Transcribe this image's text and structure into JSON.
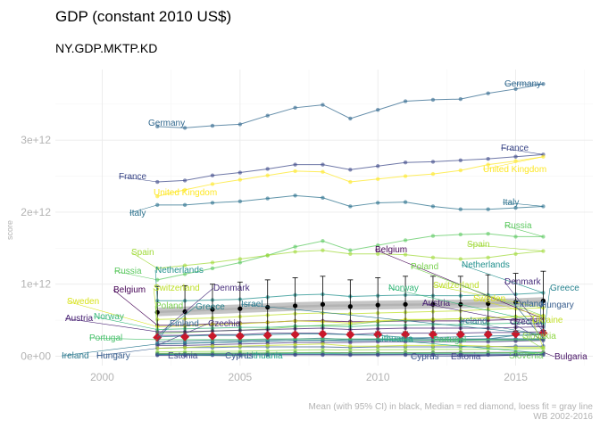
{
  "chart_data": {
    "type": "line",
    "title": "GDP (constant 2010 US$)",
    "subtitle": "NY.GDP.MKTP.KD",
    "ylabel": "score",
    "xlabel": "",
    "caption_line1": "Mean (with 95% CI) in black, Median = red diamond, loess fit = gray line",
    "caption_line2": "WB 2002-2016",
    "xlim": [
      1998.3,
      2017.8
    ],
    "ylim": [
      -130000000000.0,
      3980000000000.0
    ],
    "x_ticks": [
      2000,
      2005,
      2010,
      2015
    ],
    "x_tick_labels": [
      "2000",
      "2005",
      "2010",
      "2015"
    ],
    "y_ticks": [
      0,
      1000000000000.0,
      2000000000000.0,
      3000000000000.0
    ],
    "y_tick_labels": [
      "0e+00",
      "1e+12",
      "2e+12",
      "3e+12"
    ],
    "grid": true,
    "legend": "none",
    "x": [
      2002,
      2003,
      2004,
      2005,
      2006,
      2007,
      2008,
      2009,
      2010,
      2011,
      2012,
      2013,
      2014,
      2015,
      2016
    ],
    "series": [
      {
        "name": "Germany",
        "color": "#31688e",
        "label_start": "Germany",
        "label_end": "Germany",
        "values": [
          3190000000000.0,
          3170000000000.0,
          3200000000000.0,
          3220000000000.0,
          3340000000000.0,
          3450000000000.0,
          3490000000000.0,
          3300000000000.0,
          3420000000000.0,
          3540000000000.0,
          3560000000000.0,
          3570000000000.0,
          3650000000000.0,
          3710000000000.0,
          3780000000000.0
        ]
      },
      {
        "name": "France",
        "color": "#3e4a89",
        "label_start": "France",
        "label_end": "France",
        "values": [
          2420000000000.0,
          2440000000000.0,
          2510000000000.0,
          2550000000000.0,
          2600000000000.0,
          2660000000000.0,
          2660000000000.0,
          2590000000000.0,
          2640000000000.0,
          2690000000000.0,
          2700000000000.0,
          2720000000000.0,
          2740000000000.0,
          2770000000000.0,
          2800000000000.0
        ]
      },
      {
        "name": "United Kingdom",
        "color": "#fde725",
        "label_start": "United Kingdom",
        "label_end": "United Kingdom",
        "values": [
          2220000000000.0,
          2310000000000.0,
          2390000000000.0,
          2450000000000.0,
          2510000000000.0,
          2570000000000.0,
          2560000000000.0,
          2420000000000.0,
          2460000000000.0,
          2500000000000.0,
          2530000000000.0,
          2580000000000.0,
          2660000000000.0,
          2710000000000.0,
          2770000000000.0
        ]
      },
      {
        "name": "Italy",
        "color": "#2c728e",
        "label_start": "Italy",
        "label_end": "Italy",
        "values": [
          2100000000000.0,
          2100000000000.0,
          2130000000000.0,
          2150000000000.0,
          2190000000000.0,
          2230000000000.0,
          2200000000000.0,
          2080000000000.0,
          2130000000000.0,
          2140000000000.0,
          2080000000000.0,
          2040000000000.0,
          2040000000000.0,
          2060000000000.0,
          2080000000000.0
        ]
      },
      {
        "name": "Russia",
        "color": "#5ec962",
        "label_start": "Russia",
        "label_end": "Russia",
        "values": [
          1060000000000.0,
          1140000000000.0,
          1220000000000.0,
          1300000000000.0,
          1400000000000.0,
          1520000000000.0,
          1600000000000.0,
          1470000000000.0,
          1540000000000.0,
          1610000000000.0,
          1670000000000.0,
          1690000000000.0,
          1700000000000.0,
          1660000000000.0,
          1660000000000.0
        ]
      },
      {
        "name": "Spain",
        "color": "#a0da39",
        "label_start": "Spain",
        "label_end": "Spain",
        "values": [
          1220000000000.0,
          1260000000000.0,
          1300000000000.0,
          1350000000000.0,
          1400000000000.0,
          1450000000000.0,
          1470000000000.0,
          1420000000000.0,
          1420000000000.0,
          1410000000000.0,
          1370000000000.0,
          1350000000000.0,
          1370000000000.0,
          1420000000000.0,
          1460000000000.0
        ]
      },
      {
        "name": "Netherlands",
        "color": "#21908d",
        "label_start": "Netherlands",
        "label_end": "Netherlands",
        "values": [
          770000000000.0,
          770000000000.0,
          780000000000.0,
          790000000000.0,
          820000000000.0,
          850000000000.0,
          860000000000.0,
          830000000000.0,
          840000000000.0,
          850000000000.0,
          840000000000.0,
          840000000000.0,
          850000000000.0,
          860000000000.0,
          880000000000.0
        ]
      },
      {
        "name": "Switzerland",
        "color": "#bddf26",
        "label_start": "Switzerland",
        "label_end": "Switzerland",
        "values": [
          510000000000.0,
          520000000000.0,
          530000000000.0,
          550000000000.0,
          570000000000.0,
          590000000000.0,
          600000000000.0,
          590000000000.0,
          600000000000.0,
          610000000000.0,
          620000000000.0,
          630000000000.0,
          650000000000.0,
          660000000000.0,
          670000000000.0
        ]
      },
      {
        "name": "Belgium",
        "color": "#440154",
        "label_start": "Belgium",
        "label_end": "Belgium",
        "values": [
          430000000000.0,
          430000000000.0,
          450000000000.0,
          460000000000.0,
          470000000000.0,
          490000000000.0,
          490000000000.0,
          480000000000.0,
          480000000000.0,
          490000000000.0,
          490000000000.0,
          490000000000.0,
          500000000000.0,
          510000000000.0,
          520000000000.0
        ]
      },
      {
        "name": "Poland",
        "color": "#7ad151",
        "label_start": "Poland",
        "label_end": "Poland",
        "values": [
          320000000000.0,
          330000000000.0,
          350000000000.0,
          360000000000.0,
          380000000000.0,
          410000000000.0,
          430000000000.0,
          440000000000.0,
          480000000000.0,
          500000000000.0,
          510000000000.0,
          520000000000.0,
          530000000000.0,
          550000000000.0,
          560000000000.0
        ]
      },
      {
        "name": "Sweden",
        "color": "#d8e219",
        "label_start": "Sweden",
        "label_end": "Sweden",
        "values": [
          410000000000.0,
          420000000000.0,
          440000000000.0,
          450000000000.0,
          470000000000.0,
          490000000000.0,
          480000000000.0,
          460000000000.0,
          490000000000.0,
          510000000000.0,
          510000000000.0,
          520000000000.0,
          530000000000.0,
          550000000000.0,
          560000000000.0
        ]
      },
      {
        "name": "Austria",
        "color": "#482173",
        "label_start": "Austria",
        "label_end": "Austria",
        "values": [
          340000000000.0,
          340000000000.0,
          350000000000.0,
          360000000000.0,
          370000000000.0,
          380000000000.0,
          390000000000.0,
          370000000000.0,
          380000000000.0,
          390000000000.0,
          390000000000.0,
          390000000000.0,
          390000000000.0,
          400000000000.0,
          410000000000.0
        ]
      },
      {
        "name": "Norway",
        "color": "#35b779",
        "label_start": "Norway",
        "label_end": "Norway",
        "values": [
          370000000000.0,
          380000000000.0,
          390000000000.0,
          400000000000.0,
          400000000000.0,
          420000000000.0,
          420000000000.0,
          410000000000.0,
          430000000000.0,
          430000000000.0,
          440000000000.0,
          440000000000.0,
          450000000000.0,
          460000000000.0,
          460000000000.0
        ]
      },
      {
        "name": "Denmark",
        "color": "#472d7b",
        "label_start": "Denmark",
        "label_end": "Denmark",
        "values": [
          290000000000.0,
          290000000000.0,
          300000000000.0,
          300000000000.0,
          320000000000.0,
          320000000000.0,
          320000000000.0,
          300000000000.0,
          320000000000.0,
          320000000000.0,
          320000000000.0,
          320000000000.0,
          330000000000.0,
          330000000000.0,
          340000000000.0
        ]
      },
      {
        "name": "Greece",
        "color": "#26828e",
        "label_start": "Greece",
        "label_end": "Greece",
        "values": [
          270000000000.0,
          280000000000.0,
          290000000000.0,
          290000000000.0,
          300000000000.0,
          310000000000.0,
          310000000000.0,
          300000000000.0,
          290000000000.0,
          260000000000.0,
          240000000000.0,
          230000000000.0,
          240000000000.0,
          240000000000.0,
          240000000000.0
        ]
      },
      {
        "name": "Israel",
        "color": "#29798e",
        "label_start": "",
        "label_end": "Israel",
        "values": [
          170000000000.0,
          180000000000.0,
          190000000000.0,
          200000000000.0,
          210000000000.0,
          220000000000.0,
          220000000000.0,
          230000000000.0,
          230000000000.0,
          250000000000.0,
          260000000000.0,
          270000000000.0,
          280000000000.0,
          290000000000.0,
          300000000000.0
        ]
      },
      {
        "name": "Finland",
        "color": "#31688e",
        "label_start": "Finland",
        "label_end": "Finland",
        "values": [
          200000000000.0,
          210000000000.0,
          220000000000.0,
          220000000000.0,
          230000000000.0,
          240000000000.0,
          250000000000.0,
          230000000000.0,
          240000000000.0,
          240000000000.0,
          240000000000.0,
          240000000000.0,
          240000000000.0,
          240000000000.0,
          240000000000.0
        ]
      },
      {
        "name": "Ireland",
        "color": "#2a788e",
        "label_start": "Ireland",
        "label_end": "Ireland",
        "values": [
          170000000000.0,
          180000000000.0,
          190000000000.0,
          200000000000.0,
          210000000000.0,
          220000000000.0,
          220000000000.0,
          210000000000.0,
          220000000000.0,
          220000000000.0,
          220000000000.0,
          220000000000.0,
          240000000000.0,
          290000000000.0,
          300000000000.0
        ]
      },
      {
        "name": "Portugal",
        "color": "#4ac16d",
        "label_start": "Portugal",
        "label_end": "Portugal",
        "values": [
          230000000000.0,
          230000000000.0,
          230000000000.0,
          230000000000.0,
          240000000000.0,
          240000000000.0,
          240000000000.0,
          240000000000.0,
          240000000000.0,
          230000000000.0,
          220000000000.0,
          220000000000.0,
          220000000000.0,
          220000000000.0,
          230000000000.0
        ]
      },
      {
        "name": "Czechia",
        "color": "#46337e",
        "label_start": "Czechia",
        "label_end": "Czechia",
        "values": [
          150000000000.0,
          150000000000.0,
          160000000000.0,
          170000000000.0,
          180000000000.0,
          190000000000.0,
          190000000000.0,
          190000000000.0,
          200000000000.0,
          200000000000.0,
          200000000000.0,
          200000000000.0,
          200000000000.0,
          210000000000.0,
          220000000000.0
        ]
      },
      {
        "name": "Hungary",
        "color": "#365c8d",
        "label_start": "Hungary",
        "label_end": "Hungary",
        "values": [
          110000000000.0,
          120000000000.0,
          120000000000.0,
          130000000000.0,
          130000000000.0,
          130000000000.0,
          130000000000.0,
          120000000000.0,
          130000000000.0,
          130000000000.0,
          130000000000.0,
          130000000000.0,
          130000000000.0,
          140000000000.0,
          140000000000.0
        ]
      },
      {
        "name": "Ukraine",
        "color": "#c2df23",
        "label_start": "",
        "label_end": "Ukraine",
        "values": [
          110000000000.0,
          120000000000.0,
          140000000000.0,
          140000000000.0,
          150000000000.0,
          160000000000.0,
          170000000000.0,
          140000000000.0,
          140000000000.0,
          150000000000.0,
          150000000000.0,
          150000000000.0,
          140000000000.0,
          120000000000.0,
          120000000000.0
        ]
      },
      {
        "name": "Slovakia",
        "color": "#8fd744",
        "label_start": "",
        "label_end": "Slovakia",
        "values": [
          60000000000.0,
          63000000000.0,
          66000000000.0,
          70000000000.0,
          76000000000.0,
          85000000000.0,
          90000000000.0,
          86000000000.0,
          89000000000.0,
          92000000000.0,
          94000000000.0,
          95000000000.0,
          98000000000.0,
          102000000000.0,
          105000000000.0
        ]
      },
      {
        "name": "Bulgaria",
        "color": "#481467",
        "label_start": "",
        "label_end": "Bulgaria",
        "values": [
          35000000000.0,
          37000000000.0,
          39000000000.0,
          41000000000.0,
          44000000000.0,
          47000000000.0,
          50000000000.0,
          48000000000.0,
          49000000000.0,
          50000000000.0,
          50000000000.0,
          51000000000.0,
          51000000000.0,
          53000000000.0,
          55000000000.0
        ]
      },
      {
        "name": "Lithuania",
        "color": "#20a386",
        "label_start": "Lithuania",
        "label_end": "Lithuania",
        "values": [
          26000000000.0,
          28000000000.0,
          30000000000.0,
          32000000000.0,
          34000000000.0,
          38000000000.0,
          39000000000.0,
          33000000000.0,
          34000000000.0,
          36000000000.0,
          38000000000.0,
          39000000000.0,
          40000000000.0,
          41000000000.0,
          42000000000.0
        ]
      },
      {
        "name": "Slovenia",
        "color": "#6ccd5a",
        "label_start": "",
        "label_end": "Slovenia",
        "values": [
          39000000000.0,
          40000000000.0,
          42000000000.0,
          44000000000.0,
          46000000000.0,
          49000000000.0,
          51000000000.0,
          47000000000.0,
          48000000000.0,
          48000000000.0,
          47000000000.0,
          47000000000.0,
          48000000000.0,
          49000000000.0,
          50000000000.0
        ]
      },
      {
        "name": "Cyprus",
        "color": "#3b528b",
        "label_start": "Cyprus",
        "label_end": "Cyprus",
        "values": [
          20000000000.0,
          20000000000.0,
          21000000000.0,
          22000000000.0,
          23000000000.0,
          24000000000.0,
          25000000000.0,
          25000000000.0,
          25000000000.0,
          25000000000.0,
          24000000000.0,
          23000000000.0,
          22000000000.0,
          23000000000.0,
          24000000000.0
        ]
      },
      {
        "name": "Estonia",
        "color": "#404688",
        "label_start": "Estonia",
        "label_end": "Estonia",
        "values": [
          13000000000.0,
          14000000000.0,
          15000000000.0,
          16000000000.0,
          18000000000.0,
          19000000000.0,
          18000000000.0,
          16000000000.0,
          17000000000.0,
          18000000000.0,
          18000000000.0,
          19000000000.0,
          19000000000.0,
          20000000000.0,
          20000000000.0
        ]
      }
    ],
    "summary": {
      "mean": [
        610000000000.0,
        620000000000.0,
        650000000000.0,
        660000000000.0,
        680000000000.0,
        700000000000.0,
        720000000000.0,
        690000000000.0,
        710000000000.0,
        720000000000.0,
        720000000000.0,
        720000000000.0,
        730000000000.0,
        750000000000.0,
        770000000000.0
      ],
      "ci_low": [
        280000000000.0,
        290000000000.0,
        300000000000.0,
        310000000000.0,
        320000000000.0,
        330000000000.0,
        340000000000.0,
        330000000000.0,
        340000000000.0,
        340000000000.0,
        340000000000.0,
        340000000000.0,
        340000000000.0,
        350000000000.0,
        360000000000.0
      ],
      "ci_high": [
        970000000000.0,
        980000000000.0,
        1000000000000.0,
        1030000000000.0,
        1060000000000.0,
        1090000000000.0,
        1110000000000.0,
        1060000000000.0,
        1090000000000.0,
        1110000000000.0,
        1110000000000.0,
        1110000000000.0,
        1130000000000.0,
        1150000000000.0,
        1180000000000.0
      ],
      "median": [
        260000000000.0,
        270000000000.0,
        280000000000.0,
        280000000000.0,
        290000000000.0,
        300000000000.0,
        310000000000.0,
        300000000000.0,
        300000000000.0,
        300000000000.0,
        300000000000.0,
        300000000000.0,
        300000000000.0,
        310000000000.0,
        320000000000.0
      ],
      "loess": [
        615000000000.0,
        630000000000.0,
        645000000000.0,
        660000000000.0,
        675000000000.0,
        690000000000.0,
        700000000000.0,
        705000000000.0,
        710000000000.0,
        715000000000.0,
        720000000000.0,
        725000000000.0,
        735000000000.0,
        745000000000.0,
        760000000000.0
      ]
    }
  }
}
